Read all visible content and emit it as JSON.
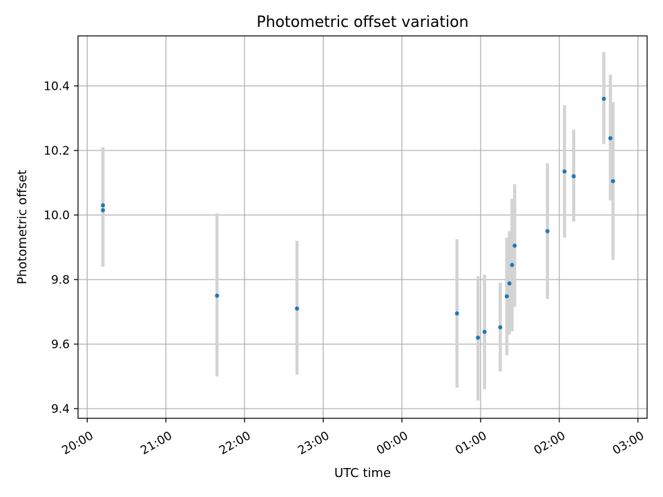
{
  "chart_data": {
    "type": "scatter",
    "title": "Photometric offset variation",
    "xlabel": "UTC time",
    "ylabel": "Photometric offset",
    "x_unit": "minutes",
    "xlim": [
      -7,
      1227
    ],
    "ylim": [
      9.37,
      10.555
    ],
    "x_ticks": [
      {
        "value": 0,
        "label": "20:00"
      },
      {
        "value": 60,
        "label": "21:00"
      },
      {
        "value": 120,
        "label": "22:00"
      },
      {
        "value": 180,
        "label": "23:00"
      },
      {
        "value": 240,
        "label": "00:00"
      },
      {
        "value": 300,
        "label": "01:00"
      },
      {
        "value": 360,
        "label": "02:00"
      },
      {
        "value": 420,
        "label": "03:00"
      }
    ],
    "y_ticks": [
      {
        "value": 9.4,
        "label": "9.4"
      },
      {
        "value": 9.6,
        "label": "9.6"
      },
      {
        "value": 9.8,
        "label": "9.8"
      },
      {
        "value": 10.0,
        "label": "10.0"
      },
      {
        "value": 10.2,
        "label": "10.2"
      },
      {
        "value": 10.4,
        "label": "10.4"
      }
    ],
    "grid": true,
    "colors": {
      "points": "#1f77b4",
      "errorbars": "#d3d3d3",
      "grid": "#b0b0b0"
    },
    "series": [
      {
        "points": [
          {
            "x": "20:12",
            "y": 10.03,
            "ylow": 9.84,
            "yhigh": 10.21
          },
          {
            "x": "20:12",
            "y": 10.015,
            "ylow": 9.84,
            "yhigh": 10.19
          },
          {
            "x": "21:39",
            "y": 9.75,
            "ylow": 9.5,
            "yhigh": 10.005
          },
          {
            "x": "22:40",
            "y": 9.71,
            "ylow": 9.505,
            "yhigh": 9.92
          },
          {
            "x": "00:42",
            "y": 9.695,
            "ylow": 9.465,
            "yhigh": 9.925
          },
          {
            "x": "00:58",
            "y": 9.62,
            "ylow": 9.425,
            "yhigh": 9.81
          },
          {
            "x": "01:03",
            "y": 9.638,
            "ylow": 9.46,
            "yhigh": 9.815
          },
          {
            "x": "01:15",
            "y": 9.652,
            "ylow": 9.515,
            "yhigh": 9.79
          },
          {
            "x": "01:20",
            "y": 9.748,
            "ylow": 9.565,
            "yhigh": 9.93
          },
          {
            "x": "01:22",
            "y": 9.788,
            "ylow": 9.63,
            "yhigh": 9.95
          },
          {
            "x": "01:24",
            "y": 9.845,
            "ylow": 9.64,
            "yhigh": 10.05
          },
          {
            "x": "01:26",
            "y": 9.905,
            "ylow": 9.715,
            "yhigh": 10.095
          },
          {
            "x": "01:51",
            "y": 9.95,
            "ylow": 9.74,
            "yhigh": 10.16
          },
          {
            "x": "02:04",
            "y": 10.135,
            "ylow": 9.93,
            "yhigh": 10.34
          },
          {
            "x": "02:11",
            "y": 10.12,
            "ylow": 9.98,
            "yhigh": 10.265
          },
          {
            "x": "02:34",
            "y": 10.36,
            "ylow": 10.22,
            "yhigh": 10.505
          },
          {
            "x": "02:39",
            "y": 10.238,
            "ylow": 10.045,
            "yhigh": 10.435
          },
          {
            "x": "02:41",
            "y": 10.105,
            "ylow": 9.86,
            "yhigh": 10.35
          }
        ]
      }
    ]
  }
}
